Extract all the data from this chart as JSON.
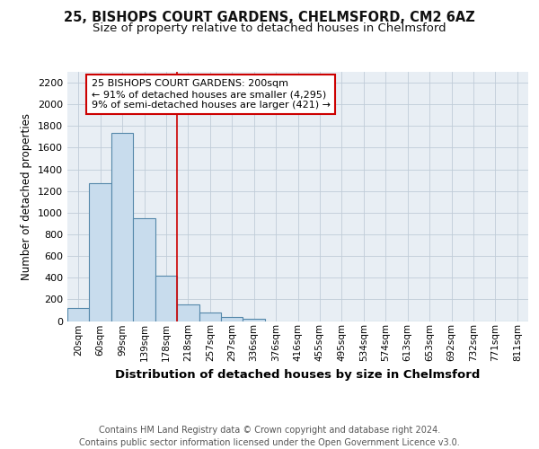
{
  "title1": "25, BISHOPS COURT GARDENS, CHELMSFORD, CM2 6AZ",
  "title2": "Size of property relative to detached houses in Chelmsford",
  "xlabel": "Distribution of detached houses by size in Chelmsford",
  "ylabel": "Number of detached properties",
  "footnote": "Contains HM Land Registry data © Crown copyright and database right 2024.\nContains public sector information licensed under the Open Government Licence v3.0.",
  "bar_labels": [
    "20sqm",
    "60sqm",
    "99sqm",
    "139sqm",
    "178sqm",
    "218sqm",
    "257sqm",
    "297sqm",
    "336sqm",
    "376sqm",
    "416sqm",
    "455sqm",
    "495sqm",
    "534sqm",
    "574sqm",
    "613sqm",
    "653sqm",
    "692sqm",
    "732sqm",
    "771sqm",
    "811sqm"
  ],
  "bar_values": [
    120,
    1270,
    1740,
    950,
    420,
    150,
    80,
    40,
    20,
    0,
    0,
    0,
    0,
    0,
    0,
    0,
    0,
    0,
    0,
    0,
    0
  ],
  "bar_color": "#c8dced",
  "bar_edge_color": "#5588aa",
  "vline_x": 4.5,
  "vline_color": "#cc0000",
  "annotation_text": "25 BISHOPS COURT GARDENS: 200sqm\n← 91% of detached houses are smaller (4,295)\n9% of semi-detached houses are larger (421) →",
  "annotation_box_color": "#ffffff",
  "annotation_box_edge": "#cc0000",
  "ylim": [
    0,
    2300
  ],
  "yticks": [
    0,
    200,
    400,
    600,
    800,
    1000,
    1200,
    1400,
    1600,
    1800,
    2000,
    2200
  ],
  "background_color": "#ffffff",
  "plot_bg_color": "#e8eef4",
  "grid_color": "#c0ccd8",
  "title1_fontsize": 10.5,
  "title2_fontsize": 9.5,
  "xlabel_fontsize": 9.5,
  "ylabel_fontsize": 8.5,
  "footnote_fontsize": 7,
  "tick_fontsize": 8,
  "xtick_fontsize": 7.5,
  "annotation_fontsize": 8
}
